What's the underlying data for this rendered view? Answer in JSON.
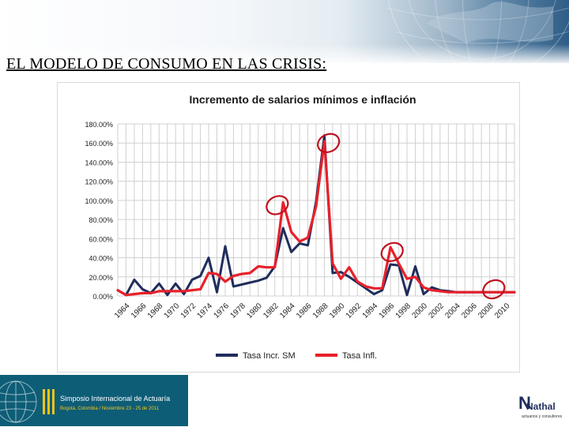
{
  "slide": {
    "title": "EL MODELO DE CONSUMO EN LAS CRISIS:"
  },
  "footer": {
    "event_line1": "Simposio Internacional de Actuaría",
    "event_line2": "Bogotá, Colombia / Noviembre 23 - 25 de 2011",
    "brand_name": "Nathal",
    "brand_tagline": "actuarios y consultores",
    "brand_initial": "N"
  },
  "colors": {
    "series_smw": "#1f2d5c",
    "series_infl": "#e8202a",
    "circle": "#c0101e",
    "grid": "#d0d0d0",
    "footer_bg": "#0e5d76"
  },
  "chart_data": {
    "type": "line",
    "title": "Incremento de salarios  mínimos e inflación",
    "ylim": [
      0,
      180
    ],
    "yticks": [
      0,
      20,
      40,
      60,
      80,
      100,
      120,
      140,
      160,
      180
    ],
    "ytick_labels": [
      "0.00%",
      "20.00%",
      "40.00%",
      "60.00%",
      "80.00%",
      "100.00%",
      "120.00%",
      "140.00%",
      "160.00%",
      "180.00%"
    ],
    "xlim": [
      1963,
      2011
    ],
    "xtick_labels": [
      "1964",
      "1966",
      "1968",
      "1970",
      "1972",
      "1974",
      "1976",
      "1978",
      "1980",
      "1982",
      "1984",
      "1986",
      "1988",
      "1990",
      "1992",
      "1994",
      "1996",
      "1998",
      "2000",
      "2002",
      "2004",
      "2006",
      "2008",
      "2010"
    ],
    "grid": true,
    "legend_position": "bottom",
    "x": [
      1963,
      1964,
      1965,
      1966,
      1967,
      1968,
      1969,
      1970,
      1971,
      1972,
      1973,
      1974,
      1975,
      1976,
      1977,
      1978,
      1979,
      1980,
      1981,
      1982,
      1983,
      1984,
      1985,
      1986,
      1987,
      1988,
      1989,
      1990,
      1991,
      1992,
      1993,
      1994,
      1995,
      1996,
      1997,
      1998,
      1999,
      2000,
      2001,
      2002,
      2003,
      2004,
      2005,
      2006,
      2007,
      2008,
      2009,
      2010,
      2011
    ],
    "series": [
      {
        "name": "Tasa Incr. SM",
        "color": "#1f2d5c",
        "values": [
          6,
          1,
          17,
          7,
          3,
          13,
          1,
          13,
          2,
          17,
          21,
          40,
          4,
          52,
          10,
          12,
          14,
          16,
          19,
          31,
          71,
          46,
          55,
          53,
          99,
          168,
          24,
          25,
          20,
          14,
          8,
          2,
          6,
          33,
          32,
          1,
          31,
          2,
          9,
          6,
          5,
          4,
          4,
          4,
          4,
          4,
          4,
          4,
          4
        ]
      },
      {
        "name": "Tasa Infl.",
        "color": "#e8202a",
        "values": [
          6,
          1,
          2,
          3,
          3,
          5,
          5,
          5,
          5,
          6,
          7,
          24,
          23,
          15,
          21,
          23,
          24,
          31,
          30,
          30,
          98,
          67,
          57,
          61,
          94,
          162,
          34,
          18,
          30,
          15,
          10,
          8,
          8,
          51,
          34,
          18,
          20,
          9,
          6,
          5,
          4,
          4,
          4,
          4,
          4,
          4,
          4,
          4,
          4
        ]
      }
    ],
    "highlight_circles": [
      {
        "x": 1988.5,
        "y": 160
      },
      {
        "x": 1982.3,
        "y": 95
      },
      {
        "x": 1996.2,
        "y": 46
      },
      {
        "x": 2008.5,
        "y": 7
      }
    ]
  }
}
